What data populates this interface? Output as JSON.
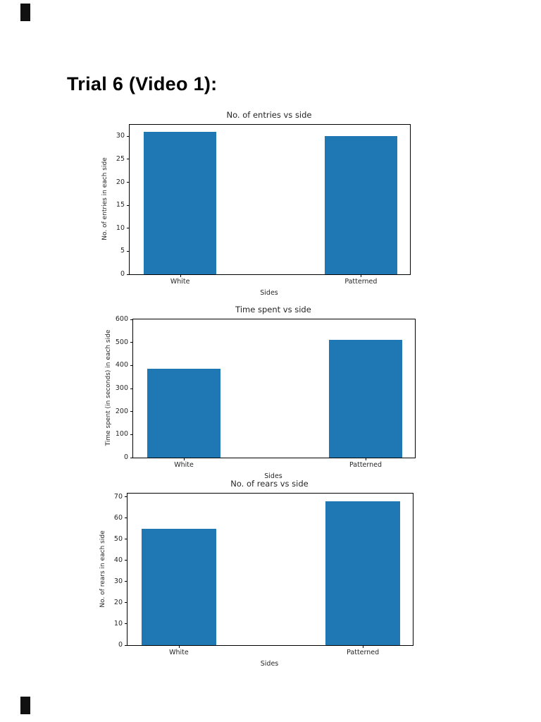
{
  "page": {
    "heading": "Trial 6 (Video 1):"
  },
  "colors": {
    "bar": "#1f77b4",
    "axis": "#000000",
    "text": "#262626"
  },
  "chart_data": [
    {
      "type": "bar",
      "title": "No. of entries vs side",
      "categories": [
        "White",
        "Patterned"
      ],
      "values": [
        31,
        30
      ],
      "xlabel": "Sides",
      "ylabel": "No. of entries in each side",
      "ylim": [
        0,
        32.5
      ],
      "yticks": [
        0,
        5,
        10,
        15,
        20,
        25,
        30
      ],
      "grid": false,
      "legend": "none"
    },
    {
      "type": "bar",
      "title": "Time spent vs side",
      "categories": [
        "White",
        "Patterned"
      ],
      "values": [
        385,
        510
      ],
      "xlabel": "Sides",
      "ylabel": "Time spent (in seconds) in each side",
      "ylim": [
        0,
        600
      ],
      "yticks": [
        0,
        100,
        200,
        300,
        400,
        500,
        600
      ],
      "grid": false,
      "legend": "none"
    },
    {
      "type": "bar",
      "title": "No. of rears vs side",
      "categories": [
        "White",
        "Patterned"
      ],
      "values": [
        55,
        68
      ],
      "xlabel": "Sides",
      "ylabel": "No. of rears in each side",
      "ylim": [
        0,
        71.5
      ],
      "yticks": [
        0,
        10,
        20,
        30,
        40,
        50,
        60,
        70
      ],
      "grid": false,
      "legend": "none"
    }
  ]
}
